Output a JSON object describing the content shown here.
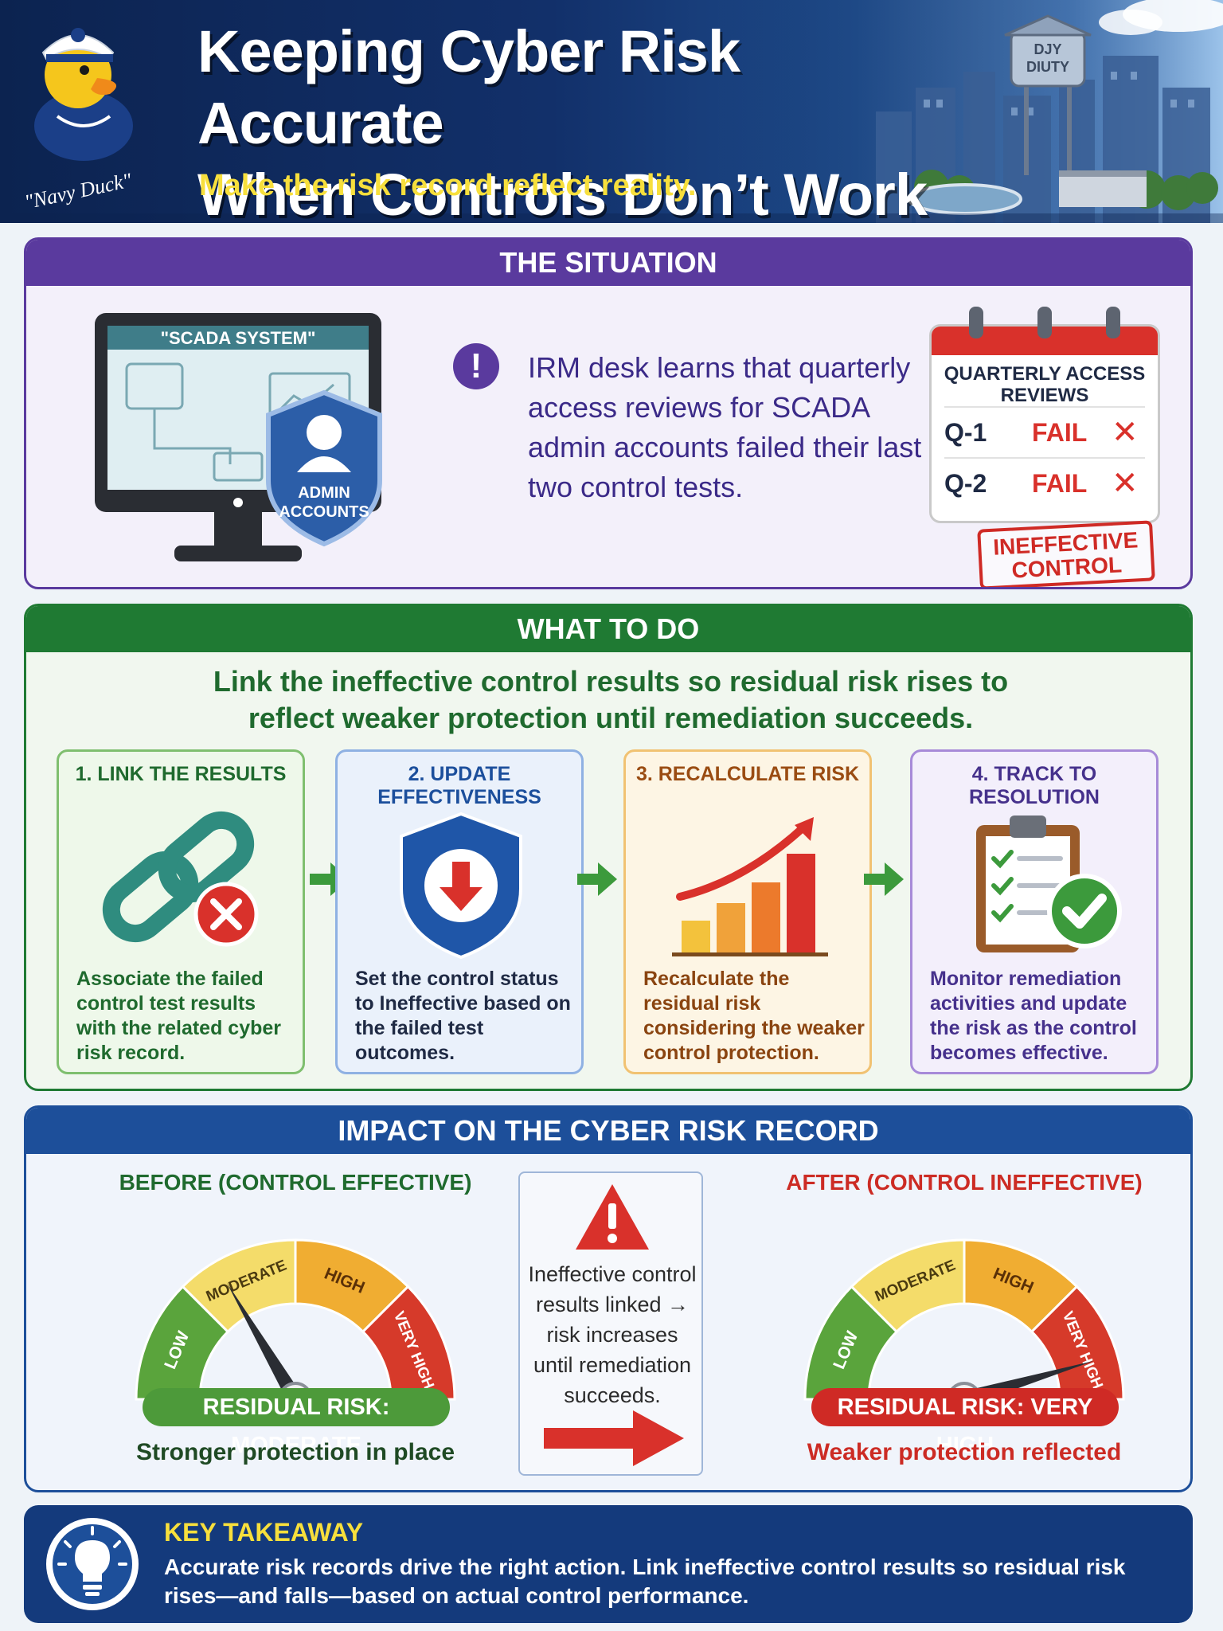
{
  "header": {
    "title_line1": "Keeping Cyber Risk Accurate",
    "title_line2": "When Controls Don’t Work",
    "subtitle": "Make the risk record reflect reality.",
    "mascot_label": "\"Navy Duck\"",
    "tower_label_line1": "DJY",
    "tower_label_line2": "DIUTY"
  },
  "situation": {
    "heading": "THE SITUATION",
    "monitor_label": "\"SCADA SYSTEM\"",
    "shield_label_line1": "ADMIN",
    "shield_label_line2": "ACCOUNTS",
    "alert_text": "IRM desk learns that quarterly access reviews for SCADA admin accounts failed their last two control tests.",
    "calendar": {
      "title_line1": "QUARTERLY ACCESS",
      "title_line2": "REVIEWS",
      "rows": [
        {
          "quarter": "Q-1",
          "result": "FAIL"
        },
        {
          "quarter": "Q-2",
          "result": "FAIL"
        }
      ]
    },
    "stamp_line1": "INEFFECTIVE",
    "stamp_line2": "CONTROL"
  },
  "what_to_do": {
    "heading": "WHAT TO DO",
    "lead_line1": "Link the ineffective control results so residual risk rises to",
    "lead_line2": "reflect weaker protection until remediation succeeds.",
    "steps": [
      {
        "title": "1. LINK THE RESULTS",
        "text": "Associate the failed control test results with the related cyber risk record.",
        "icon": "broken-link-icon"
      },
      {
        "title": "2. UPDATE EFFECTIVENESS",
        "text": "Set the control status to Ineffective based on the failed test outcomes.",
        "icon": "shield-down-arrow-icon"
      },
      {
        "title": "3. RECALCULATE RISK",
        "text": "Recalculate the residual risk considering the weaker control protection.",
        "icon": "rising-bar-chart-icon"
      },
      {
        "title": "4. TRACK TO RESOLUTION",
        "text": "Monitor remediation activities and update the risk as the control becomes effective.",
        "icon": "clipboard-check-icon"
      }
    ]
  },
  "impact": {
    "heading": "IMPACT ON THE CYBER RISK RECORD",
    "gauge_labels": [
      "LOW",
      "MODERATE",
      "HIGH",
      "VERY HIGH"
    ],
    "before": {
      "title": "BEFORE (CONTROL EFFECTIVE)",
      "level": "MODERATE",
      "pill": "RESIDUAL RISK: MODERATE",
      "sub": "Stronger protection in place"
    },
    "middle_text": "Ineffective control results linked → risk increases until remediation succeeds.",
    "after": {
      "title": "AFTER (CONTROL INEFFECTIVE)",
      "level": "VERY HIGH",
      "pill": "RESIDUAL RISK: VERY HIGH",
      "sub": "Weaker protection reflected"
    }
  },
  "takeaway": {
    "title": "KEY TAKEAWAY",
    "text": "Accurate risk records drive the right action. Link ineffective control results so residual risk rises—and falls—based on actual control performance."
  },
  "colors": {
    "navy": "#12306a",
    "purple": "#5a3a9e",
    "green": "#1f7a33",
    "blue": "#1d4f9a",
    "red": "#cf2a25",
    "yellow": "#f7df3c"
  }
}
